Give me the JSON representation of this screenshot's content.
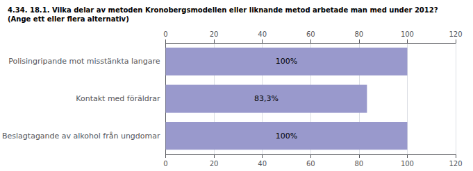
{
  "chart_data": {
    "type": "bar",
    "orientation": "horizontal",
    "title": "4.34. 18.1. Vilka delar av metoden Kronobergsmodellen eller liknande metod arbetade man med under 2012?",
    "subtitle": "(Ange ett eller flera alternativ)",
    "categories": [
      "Beslagtagande av alkohol från ungdomar",
      "Kontakt med föräldrar",
      "Polisingripande mot misstänkta langare"
    ],
    "values": [
      100,
      83.3,
      100
    ],
    "value_labels": [
      "100%",
      "83,3%",
      "100%"
    ],
    "data_labels": true,
    "color": "#9999cc",
    "xlim": [
      0,
      120
    ],
    "xticks": [
      0,
      20,
      40,
      60,
      80,
      100,
      120
    ],
    "grid": true
  }
}
